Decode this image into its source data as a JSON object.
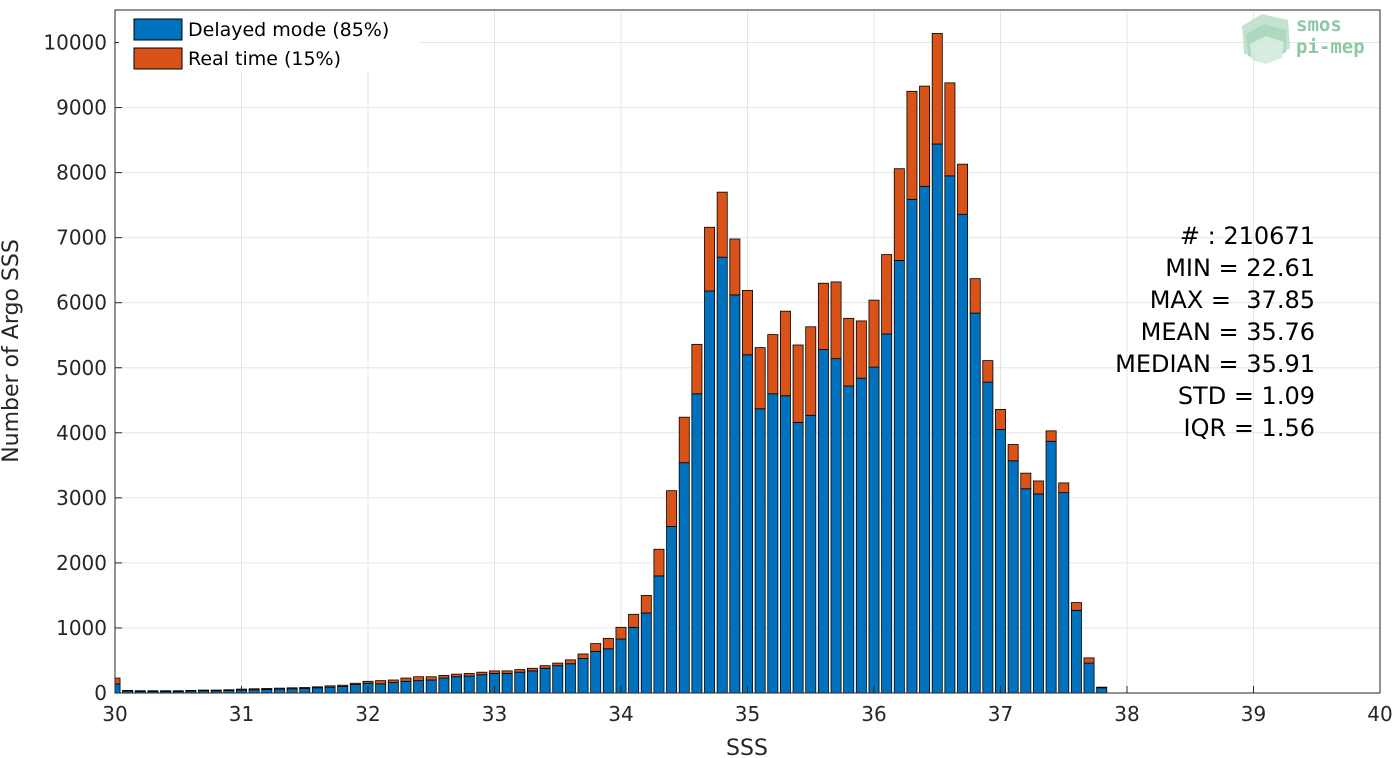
{
  "chart_data": {
    "type": "bar",
    "stacked": true,
    "xlabel": "SSS",
    "ylabel": "Number of Argo SSS",
    "xlim": [
      30,
      40
    ],
    "ylim": [
      0,
      10500
    ],
    "x_ticks": [
      30,
      31,
      32,
      33,
      34,
      35,
      36,
      37,
      38,
      39,
      40
    ],
    "y_ticks": [
      0,
      1000,
      2000,
      3000,
      4000,
      5000,
      6000,
      7000,
      8000,
      9000,
      10000
    ],
    "grid": true,
    "legend_position": "top-left",
    "bin_width": 0.1,
    "x": [
      30.0,
      30.1,
      30.2,
      30.3,
      30.4,
      30.5,
      30.6,
      30.7,
      30.8,
      30.9,
      31.0,
      31.1,
      31.2,
      31.3,
      31.4,
      31.5,
      31.6,
      31.7,
      31.8,
      31.9,
      32.0,
      32.1,
      32.2,
      32.3,
      32.4,
      32.5,
      32.6,
      32.7,
      32.8,
      32.9,
      33.0,
      33.1,
      33.2,
      33.3,
      33.4,
      33.5,
      33.6,
      33.7,
      33.8,
      33.9,
      34.0,
      34.1,
      34.2,
      34.3,
      34.4,
      34.5,
      34.6,
      34.7,
      34.8,
      34.9,
      35.0,
      35.1,
      35.2,
      35.3,
      35.4,
      35.5,
      35.6,
      35.7,
      35.8,
      35.9,
      36.0,
      36.1,
      36.2,
      36.3,
      36.4,
      36.5,
      36.6,
      36.7,
      36.8,
      36.9,
      37.0,
      37.1,
      37.2,
      37.3,
      37.4,
      37.5,
      37.6,
      37.7,
      37.8
    ],
    "series": [
      {
        "name": "Delayed mode (85%)",
        "color": "#0072BD",
        "values": [
          140,
          30,
          25,
          25,
          25,
          25,
          30,
          35,
          35,
          40,
          45,
          50,
          55,
          60,
          65,
          70,
          80,
          90,
          100,
          130,
          150,
          140,
          160,
          180,
          190,
          200,
          230,
          250,
          260,
          280,
          300,
          300,
          320,
          340,
          380,
          420,
          450,
          530,
          640,
          680,
          830,
          1010,
          1230,
          1800,
          2560,
          3540,
          4600,
          6180,
          6700,
          6120,
          5200,
          4370,
          4600,
          4570,
          4160,
          4270,
          5280,
          5140,
          4720,
          4840,
          5010,
          5520,
          6650,
          7590,
          7790,
          8440,
          7950,
          7360,
          5840,
          4780,
          4050,
          3570,
          3140,
          3060,
          3870,
          3080,
          1270,
          460,
          80
        ]
      },
      {
        "name": "Real time (15%)",
        "color": "#D95319",
        "values": [
          90,
          10,
          10,
          10,
          10,
          10,
          10,
          10,
          10,
          10,
          15,
          15,
          15,
          15,
          15,
          15,
          15,
          20,
          20,
          20,
          30,
          50,
          40,
          50,
          60,
          50,
          40,
          40,
          40,
          40,
          40,
          40,
          40,
          40,
          40,
          40,
          60,
          70,
          120,
          160,
          180,
          200,
          270,
          410,
          550,
          700,
          760,
          980,
          1000,
          860,
          990,
          940,
          910,
          1300,
          1190,
          1360,
          1020,
          1180,
          1040,
          880,
          1030,
          1220,
          1410,
          1660,
          1540,
          1700,
          1430,
          770,
          530,
          330,
          310,
          250,
          240,
          200,
          160,
          150,
          120,
          80,
          10
        ]
      }
    ],
    "annotations": [
      "# : 210671",
      "MIN = 22.61",
      "MAX =  37.85",
      "MEAN = 35.76",
      "MEDIAN = 35.91",
      "STD = 1.09",
      "IQR = 1.56"
    ],
    "logo": [
      "smos",
      "pi-mep"
    ]
  }
}
